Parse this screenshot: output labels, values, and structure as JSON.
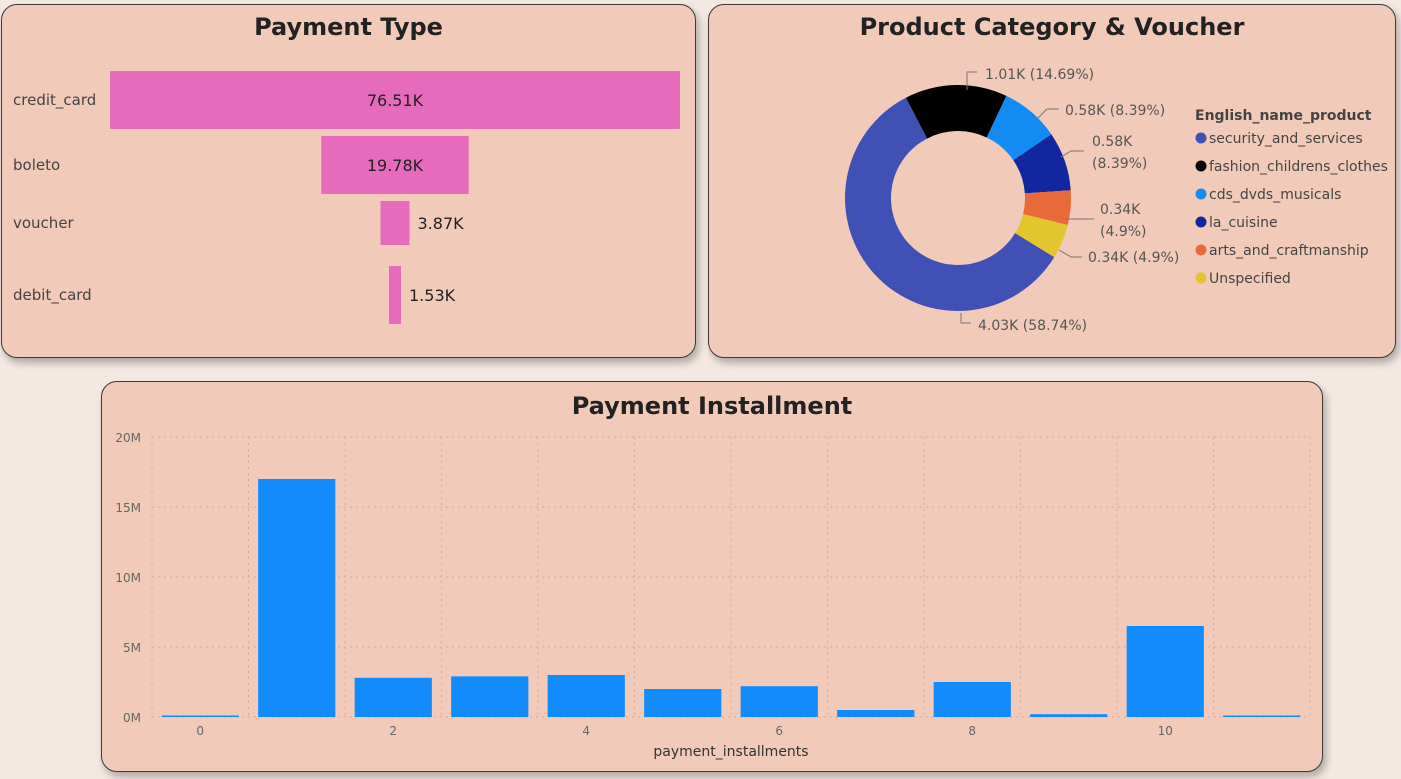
{
  "payment_type": {
    "title": "Payment Type",
    "color": "#e76bbd",
    "chart_data": {
      "type": "bar",
      "orientation": "funnel",
      "categories": [
        "credit_card",
        "boleto",
        "voucher",
        "debit_card"
      ],
      "values": [
        76510,
        19780,
        3870,
        1530
      ],
      "value_labels": [
        "76.51K",
        "19.78K",
        "3.87K",
        "1.53K"
      ]
    }
  },
  "product_category": {
    "title": "Product Category & Voucher",
    "chart_data": {
      "type": "pie",
      "style": "donut",
      "legend_title": "English_name_product",
      "legend_position": "right",
      "categories": [
        "security_and_services",
        "fashion_childrens_clothes",
        "cds_dvds_musicals",
        "la_cuisine",
        "arts_and_craftmanship",
        "Unspecified"
      ],
      "values": [
        4030,
        1010,
        580,
        580,
        340,
        340
      ],
      "percents": [
        58.74,
        14.69,
        8.39,
        8.39,
        4.9,
        4.9
      ],
      "colors": [
        "#4050b4",
        "#000000",
        "#128bf2",
        "#1226a0",
        "#e8693a",
        "#e3c52d"
      ],
      "data_labels": [
        [
          "4.03K (58.74%)"
        ],
        [
          "1.01K (14.69%)"
        ],
        [
          "0.58K (8.39%)"
        ],
        [
          "0.58K",
          "(8.39%)"
        ],
        [
          "0.34K",
          "(4.9%)"
        ],
        [
          "0.34K (4.9%)"
        ]
      ]
    }
  },
  "payment_installment": {
    "title": "Payment Installment",
    "color": "#128bfd",
    "chart_data": {
      "type": "bar",
      "x": [
        0,
        1,
        2,
        3,
        4,
        5,
        6,
        7,
        8,
        9,
        10,
        11
      ],
      "values": [
        70000,
        17000000,
        2800000,
        2900000,
        3000000,
        2000000,
        2200000,
        500000,
        2500000,
        200000,
        6500000,
        50000
      ],
      "xlabel": "payment_installments",
      "ylabel": "",
      "ylim": [
        0,
        20000000
      ],
      "yticks": [
        0,
        5000000,
        10000000,
        15000000,
        20000000
      ],
      "ytick_labels": [
        "0M",
        "5M",
        "10M",
        "15M",
        "20M"
      ],
      "xticks": [
        0,
        2,
        4,
        6,
        8,
        10
      ],
      "xtick_labels": [
        "0",
        "2",
        "4",
        "6",
        "8",
        "10"
      ],
      "grid": true
    }
  }
}
